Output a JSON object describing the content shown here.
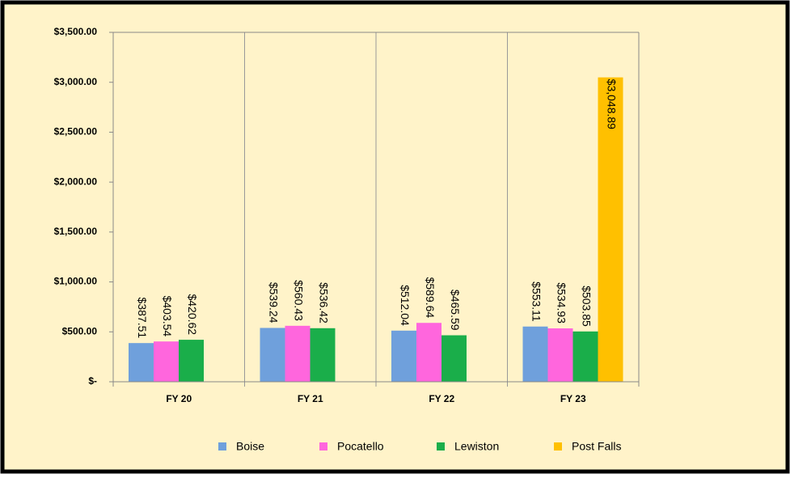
{
  "chart_data": {
    "type": "bar",
    "categories": [
      "FY 20",
      "FY 21",
      "FY 22",
      "FY 23"
    ],
    "series": [
      {
        "name": "Boise",
        "color": "#6fa0dc",
        "values": [
          387.51,
          539.24,
          512.04,
          553.11
        ],
        "value_labels": [
          "$387.51",
          "$539.24",
          "$512.04",
          "$553.11"
        ]
      },
      {
        "name": "Pocatello",
        "color": "#ff66dd",
        "values": [
          403.54,
          560.43,
          589.64,
          534.93
        ],
        "value_labels": [
          "$403.54",
          "$560.43",
          "$589.64",
          "$534.93"
        ]
      },
      {
        "name": "Lewiston",
        "color": "#1aae4a",
        "values": [
          420.62,
          536.42,
          465.59,
          503.85
        ],
        "value_labels": [
          "$420.62",
          "$536.42",
          "$465.59",
          "$503.85"
        ]
      },
      {
        "name": "Post Falls",
        "color": "#ffc000",
        "values": [
          null,
          null,
          null,
          3048.89
        ],
        "value_labels": [
          null,
          null,
          null,
          "$3,048.89"
        ]
      }
    ],
    "ylim": [
      0,
      3500
    ],
    "yticks": [
      {
        "value": 0,
        "label": "$-"
      },
      {
        "value": 500,
        "label": "$500.00"
      },
      {
        "value": 1000,
        "label": "$1,000.00"
      },
      {
        "value": 1500,
        "label": "$1,500.00"
      },
      {
        "value": 2000,
        "label": "$2,000.00"
      },
      {
        "value": 2500,
        "label": "$2,500.00"
      },
      {
        "value": 3000,
        "label": "$3,000.00"
      },
      {
        "value": 3500,
        "label": "$3,500.00"
      }
    ],
    "legend": "bottom"
  }
}
